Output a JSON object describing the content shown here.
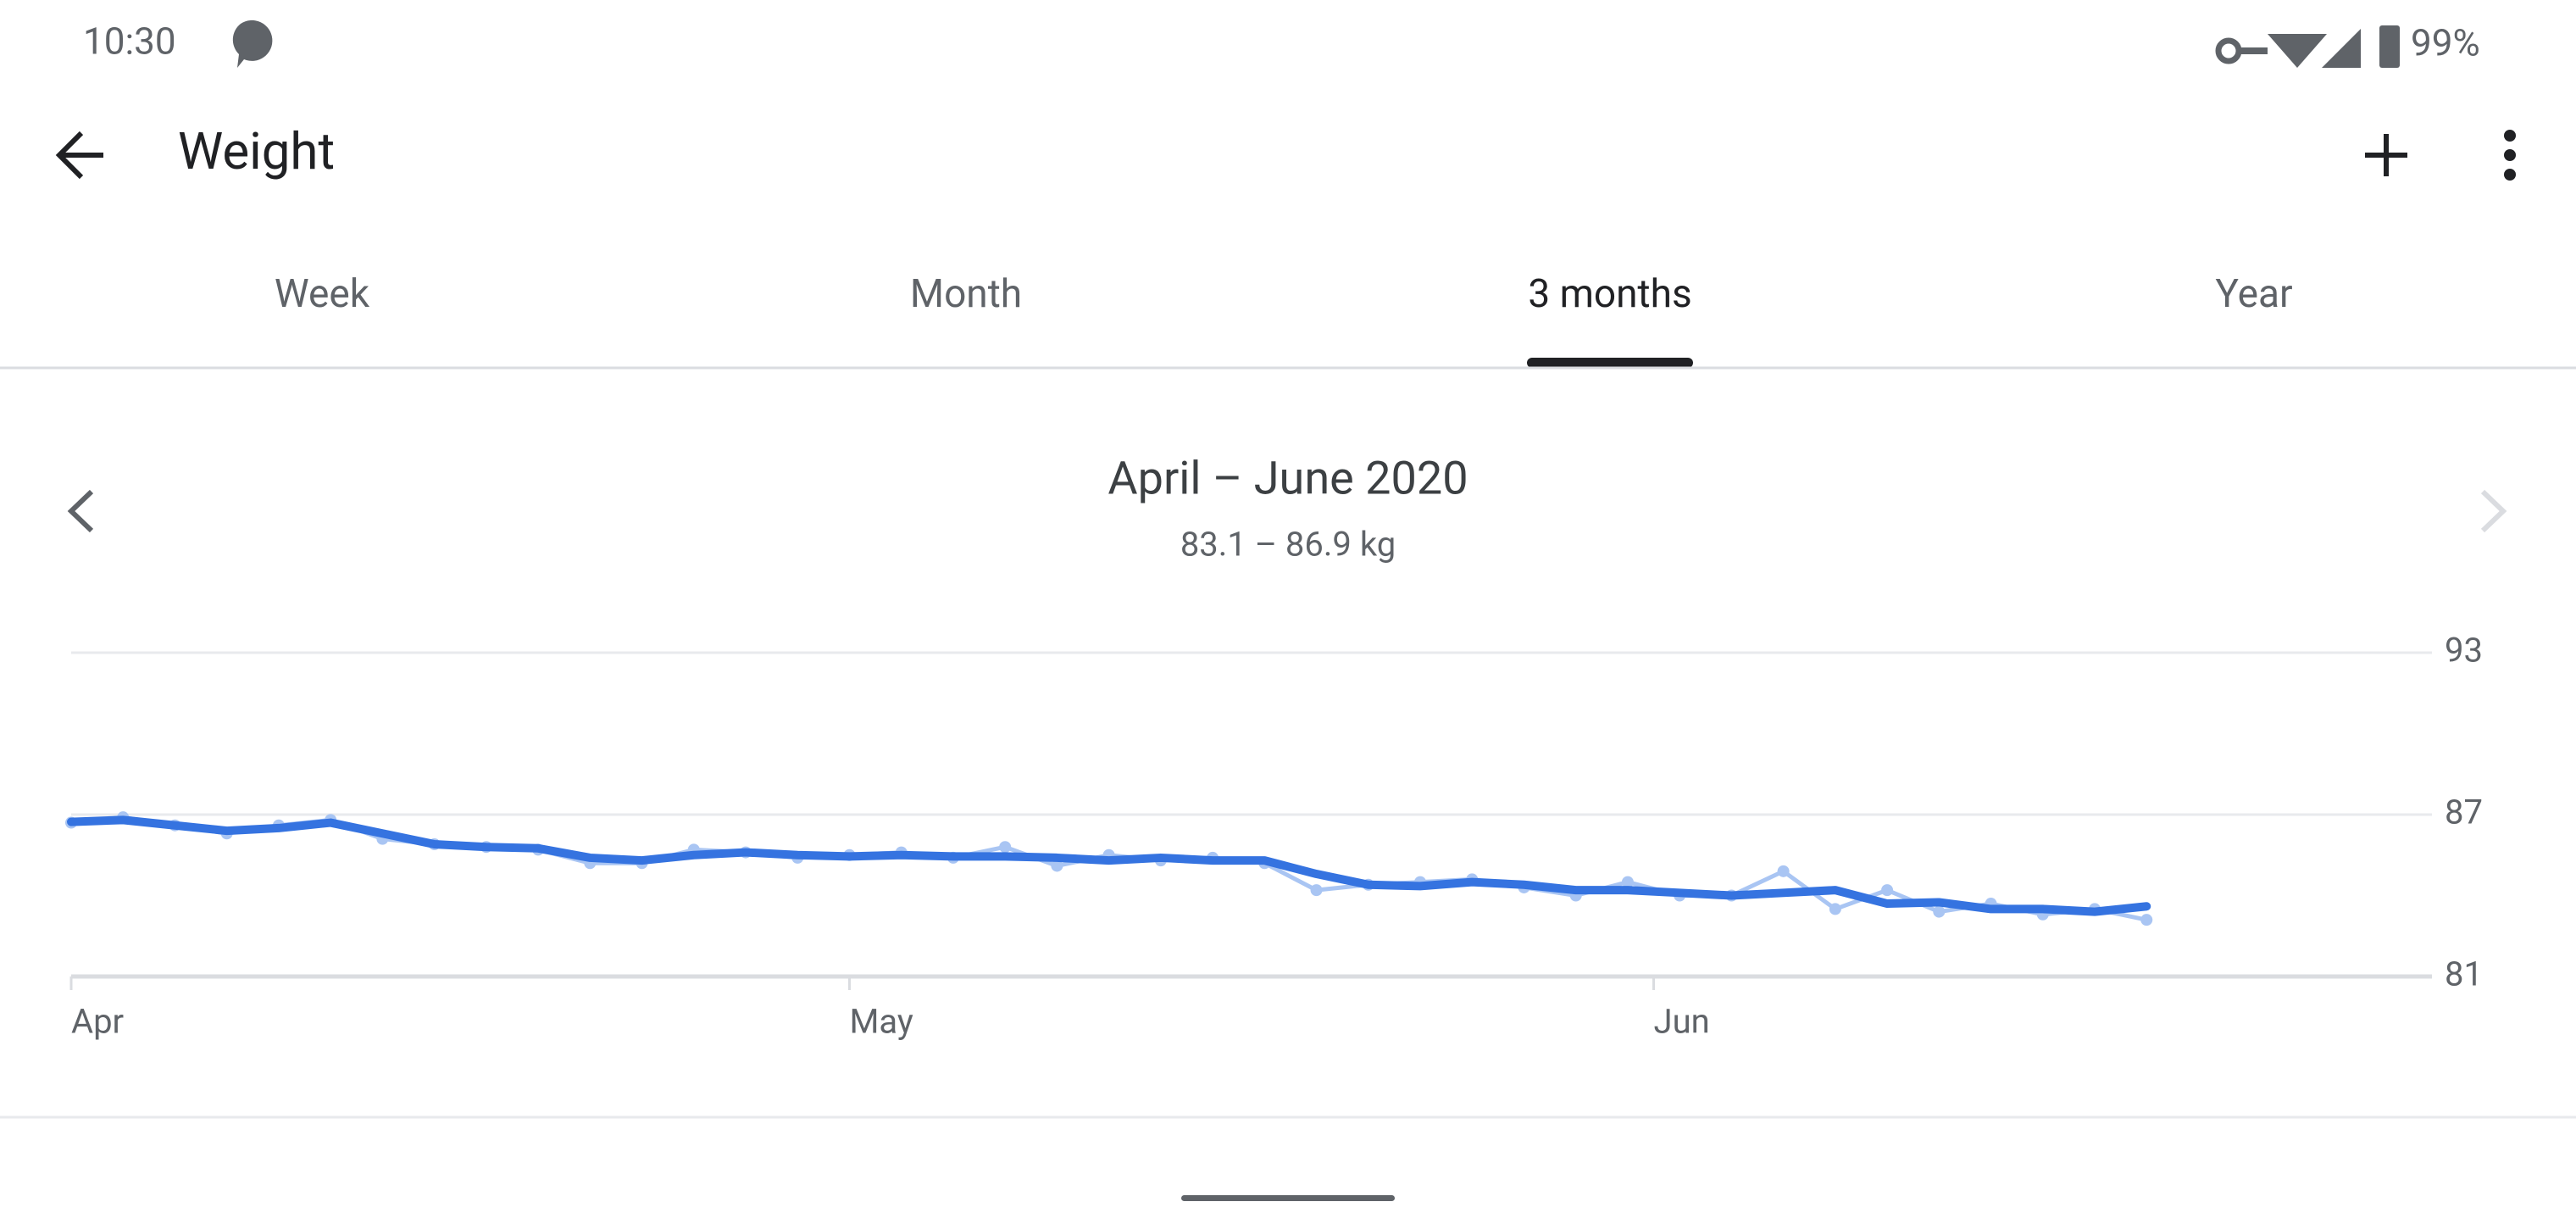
{
  "status_bar": {
    "time": "10:30",
    "battery": "99%"
  },
  "app_bar": {
    "title": "Weight"
  },
  "tabs": {
    "items": [
      "Week",
      "Month",
      "3 months",
      "Year"
    ],
    "selected": 2
  },
  "header": {
    "period": "April – June 2020",
    "range": "83.1 – 86.9 kg"
  },
  "chart_data": {
    "type": "line",
    "x": [
      0,
      2,
      4,
      6,
      8,
      10,
      12,
      14,
      16,
      18,
      20,
      22,
      24,
      26,
      28,
      30,
      32,
      34,
      36,
      38,
      40,
      42,
      44,
      46,
      48,
      50,
      52,
      54,
      56,
      58,
      60,
      62,
      64,
      66,
      68,
      70,
      72,
      74,
      76,
      78,
      80
    ],
    "xlim": [
      0,
      91
    ],
    "xticks": [
      {
        "value": 0,
        "label": "Apr"
      },
      {
        "value": 30,
        "label": "May"
      },
      {
        "value": 61,
        "label": "Jun"
      }
    ],
    "ylim": [
      81,
      93
    ],
    "yticks": [
      81,
      87,
      93
    ],
    "grid": true,
    "series": [
      {
        "color": "#a9c5f3",
        "markers": true,
        "values": [
          86.7,
          86.9,
          86.6,
          86.3,
          86.6,
          86.8,
          86.1,
          85.9,
          85.8,
          85.7,
          85.2,
          85.2,
          85.7,
          85.6,
          85.4,
          85.5,
          85.6,
          85.4,
          85.8,
          85.1,
          85.5,
          85.3,
          85.4,
          85.2,
          84.2,
          84.4,
          84.5,
          84.6,
          84.3,
          84.0,
          84.5,
          84.0,
          84.0,
          84.9,
          83.5,
          84.2,
          83.4,
          83.7,
          83.3,
          83.5,
          83.1
        ]
      },
      {
        "color": "#3573e0",
        "markers": false,
        "values": [
          86.73,
          86.8,
          86.6,
          86.4,
          86.5,
          86.7,
          86.3,
          85.9,
          85.8,
          85.75,
          85.4,
          85.3,
          85.5,
          85.6,
          85.5,
          85.45,
          85.5,
          85.45,
          85.45,
          85.4,
          85.3,
          85.4,
          85.3,
          85.3,
          84.8,
          84.4,
          84.35,
          84.5,
          84.4,
          84.2,
          84.2,
          84.1,
          84.0,
          84.1,
          84.2,
          83.7,
          83.75,
          83.5,
          83.5,
          83.4,
          83.6
        ]
      }
    ]
  }
}
